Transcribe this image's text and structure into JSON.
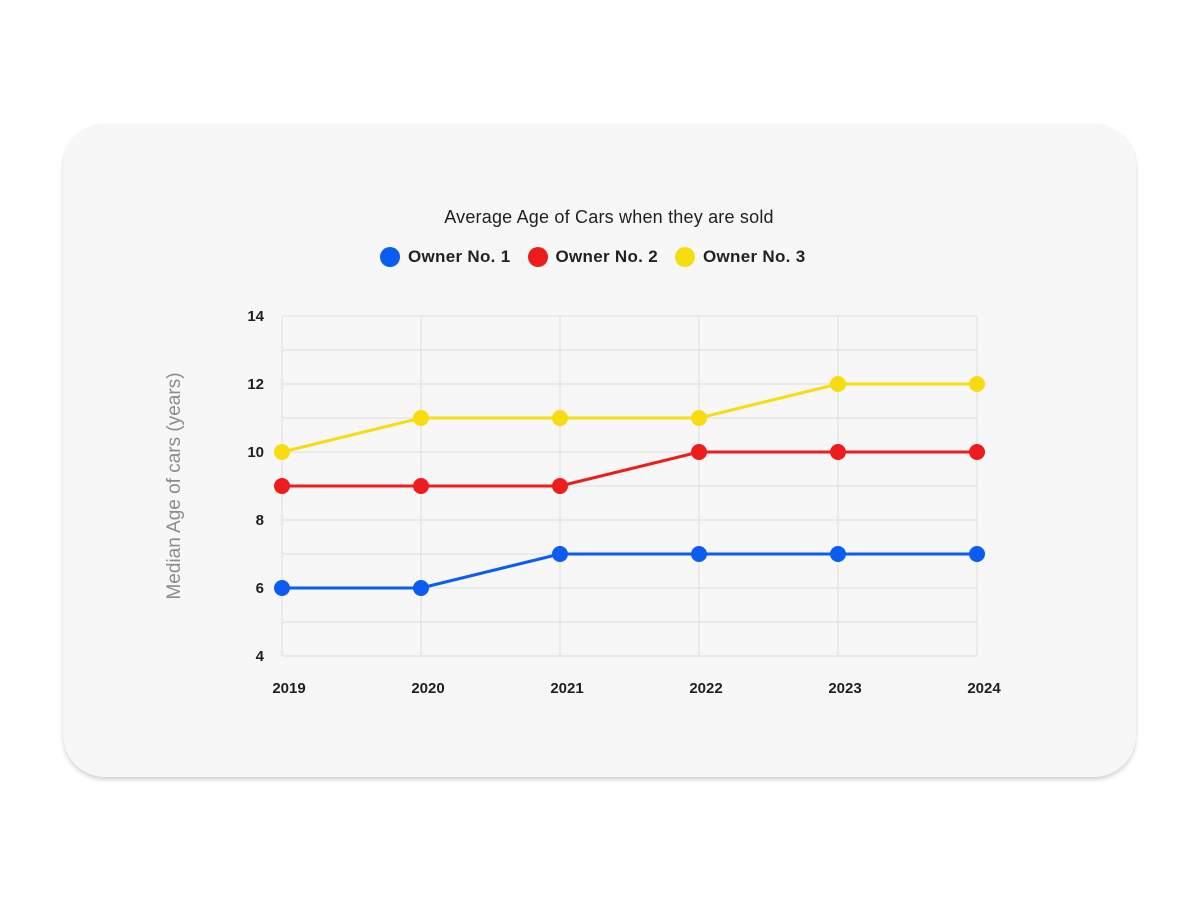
{
  "chart_data": {
    "type": "line",
    "title": "Average Age of Cars when they are sold",
    "xlabel": "",
    "ylabel": "Median Age of cars (years)",
    "x": [
      "2019",
      "2020",
      "2021",
      "2022",
      "2023",
      "2024"
    ],
    "y_ticks": [
      "4",
      "6",
      "8",
      "10",
      "12",
      "14"
    ],
    "ylim": [
      4,
      14
    ],
    "grid": true,
    "legend_position": "top-center",
    "series": [
      {
        "name": "Owner No. 1",
        "color": "#0a5cf2",
        "values": [
          6,
          6,
          7,
          7,
          7,
          7
        ]
      },
      {
        "name": "Owner No. 2",
        "color": "#ee1c1c",
        "values": [
          9,
          9,
          9,
          10,
          10,
          10
        ]
      },
      {
        "name": "Owner No. 3",
        "color": "#f7dc10",
        "values": [
          10,
          11,
          11,
          11,
          12,
          12
        ]
      }
    ]
  }
}
